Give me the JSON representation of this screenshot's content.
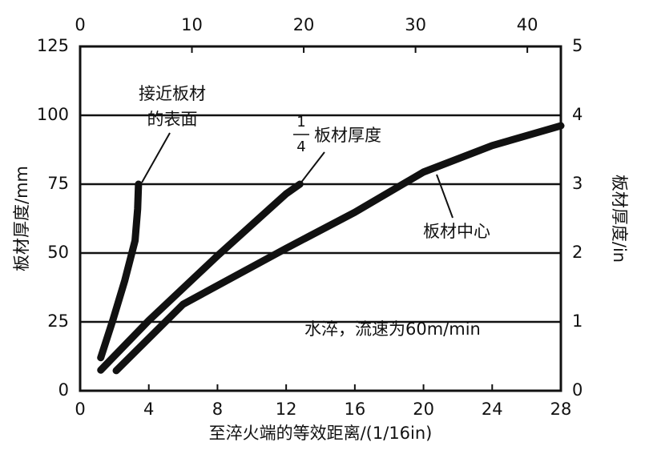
{
  "chart_data": {
    "type": "line",
    "xlabel": "至淬火端的等效距离/(1/16in)",
    "ylabel": "板材厚度/mm",
    "y2label": "板材厚度/in",
    "xlim": [
      0,
      28
    ],
    "xticks": [
      0,
      4,
      8,
      12,
      16,
      20,
      24,
      28
    ],
    "x2lim": [
      0,
      43
    ],
    "x2ticks": [
      0,
      10,
      20,
      30,
      40
    ],
    "ylim": [
      0,
      125
    ],
    "yticks": [
      0,
      25,
      50,
      75,
      100,
      125
    ],
    "y2lim": [
      0,
      5
    ],
    "y2ticks": [
      0,
      1,
      2,
      3,
      4,
      5
    ],
    "grid": true,
    "series": [
      {
        "color": "#111111",
        "x": [
          1.2,
          1.9,
          2.6,
          3.2,
          3.35,
          3.4
        ],
        "values": [
          12,
          25.5,
          40,
          54.5,
          66,
          75
        ]
      },
      {
        "color": "#111111",
        "x": [
          1.2,
          4,
          8,
          12,
          12.8
        ],
        "values": [
          7.5,
          25.5,
          49,
          71.5,
          75
        ]
      },
      {
        "color": "#111111",
        "x": [
          2.1,
          6,
          12,
          16,
          20,
          24,
          28
        ],
        "values": [
          7.3,
          31.4,
          51.7,
          64.8,
          79.4,
          89,
          96.2
        ]
      }
    ],
    "annotations": {
      "surface": [
        "接近板材",
        "的表面"
      ],
      "quarter": {
        "numerator": "1",
        "denominator": "4",
        "text": "板材厚度"
      },
      "center": "板材中心",
      "condition": "水淬，流速为60m/min"
    }
  }
}
